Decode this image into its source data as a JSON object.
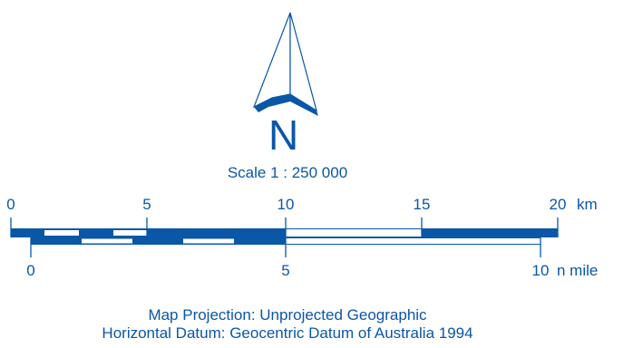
{
  "colors": {
    "map_blue": "#0a57a8",
    "background": "#ffffff"
  },
  "north_arrow": {
    "icon": "north-arrow-icon",
    "label": "N"
  },
  "scale_label": "Scale 1 : 250 000",
  "km_bar": {
    "unit_label": "km",
    "ticks": [
      {
        "value": 0,
        "label": "0"
      },
      {
        "value": 5,
        "label": "5"
      },
      {
        "value": 10,
        "label": "10"
      },
      {
        "value": 15,
        "label": "15"
      },
      {
        "value": 20,
        "label": "20"
      }
    ]
  },
  "nmile_bar": {
    "unit_label": "n mile",
    "ticks": [
      {
        "value": 0,
        "label": "0"
      },
      {
        "value": 5,
        "label": "5"
      },
      {
        "value": 10,
        "label": "10"
      }
    ]
  },
  "footer": {
    "projection": "Map Projection:  Unprojected Geographic",
    "datum": "Horizontal Datum:  Geocentric Datum of Australia 1994"
  }
}
